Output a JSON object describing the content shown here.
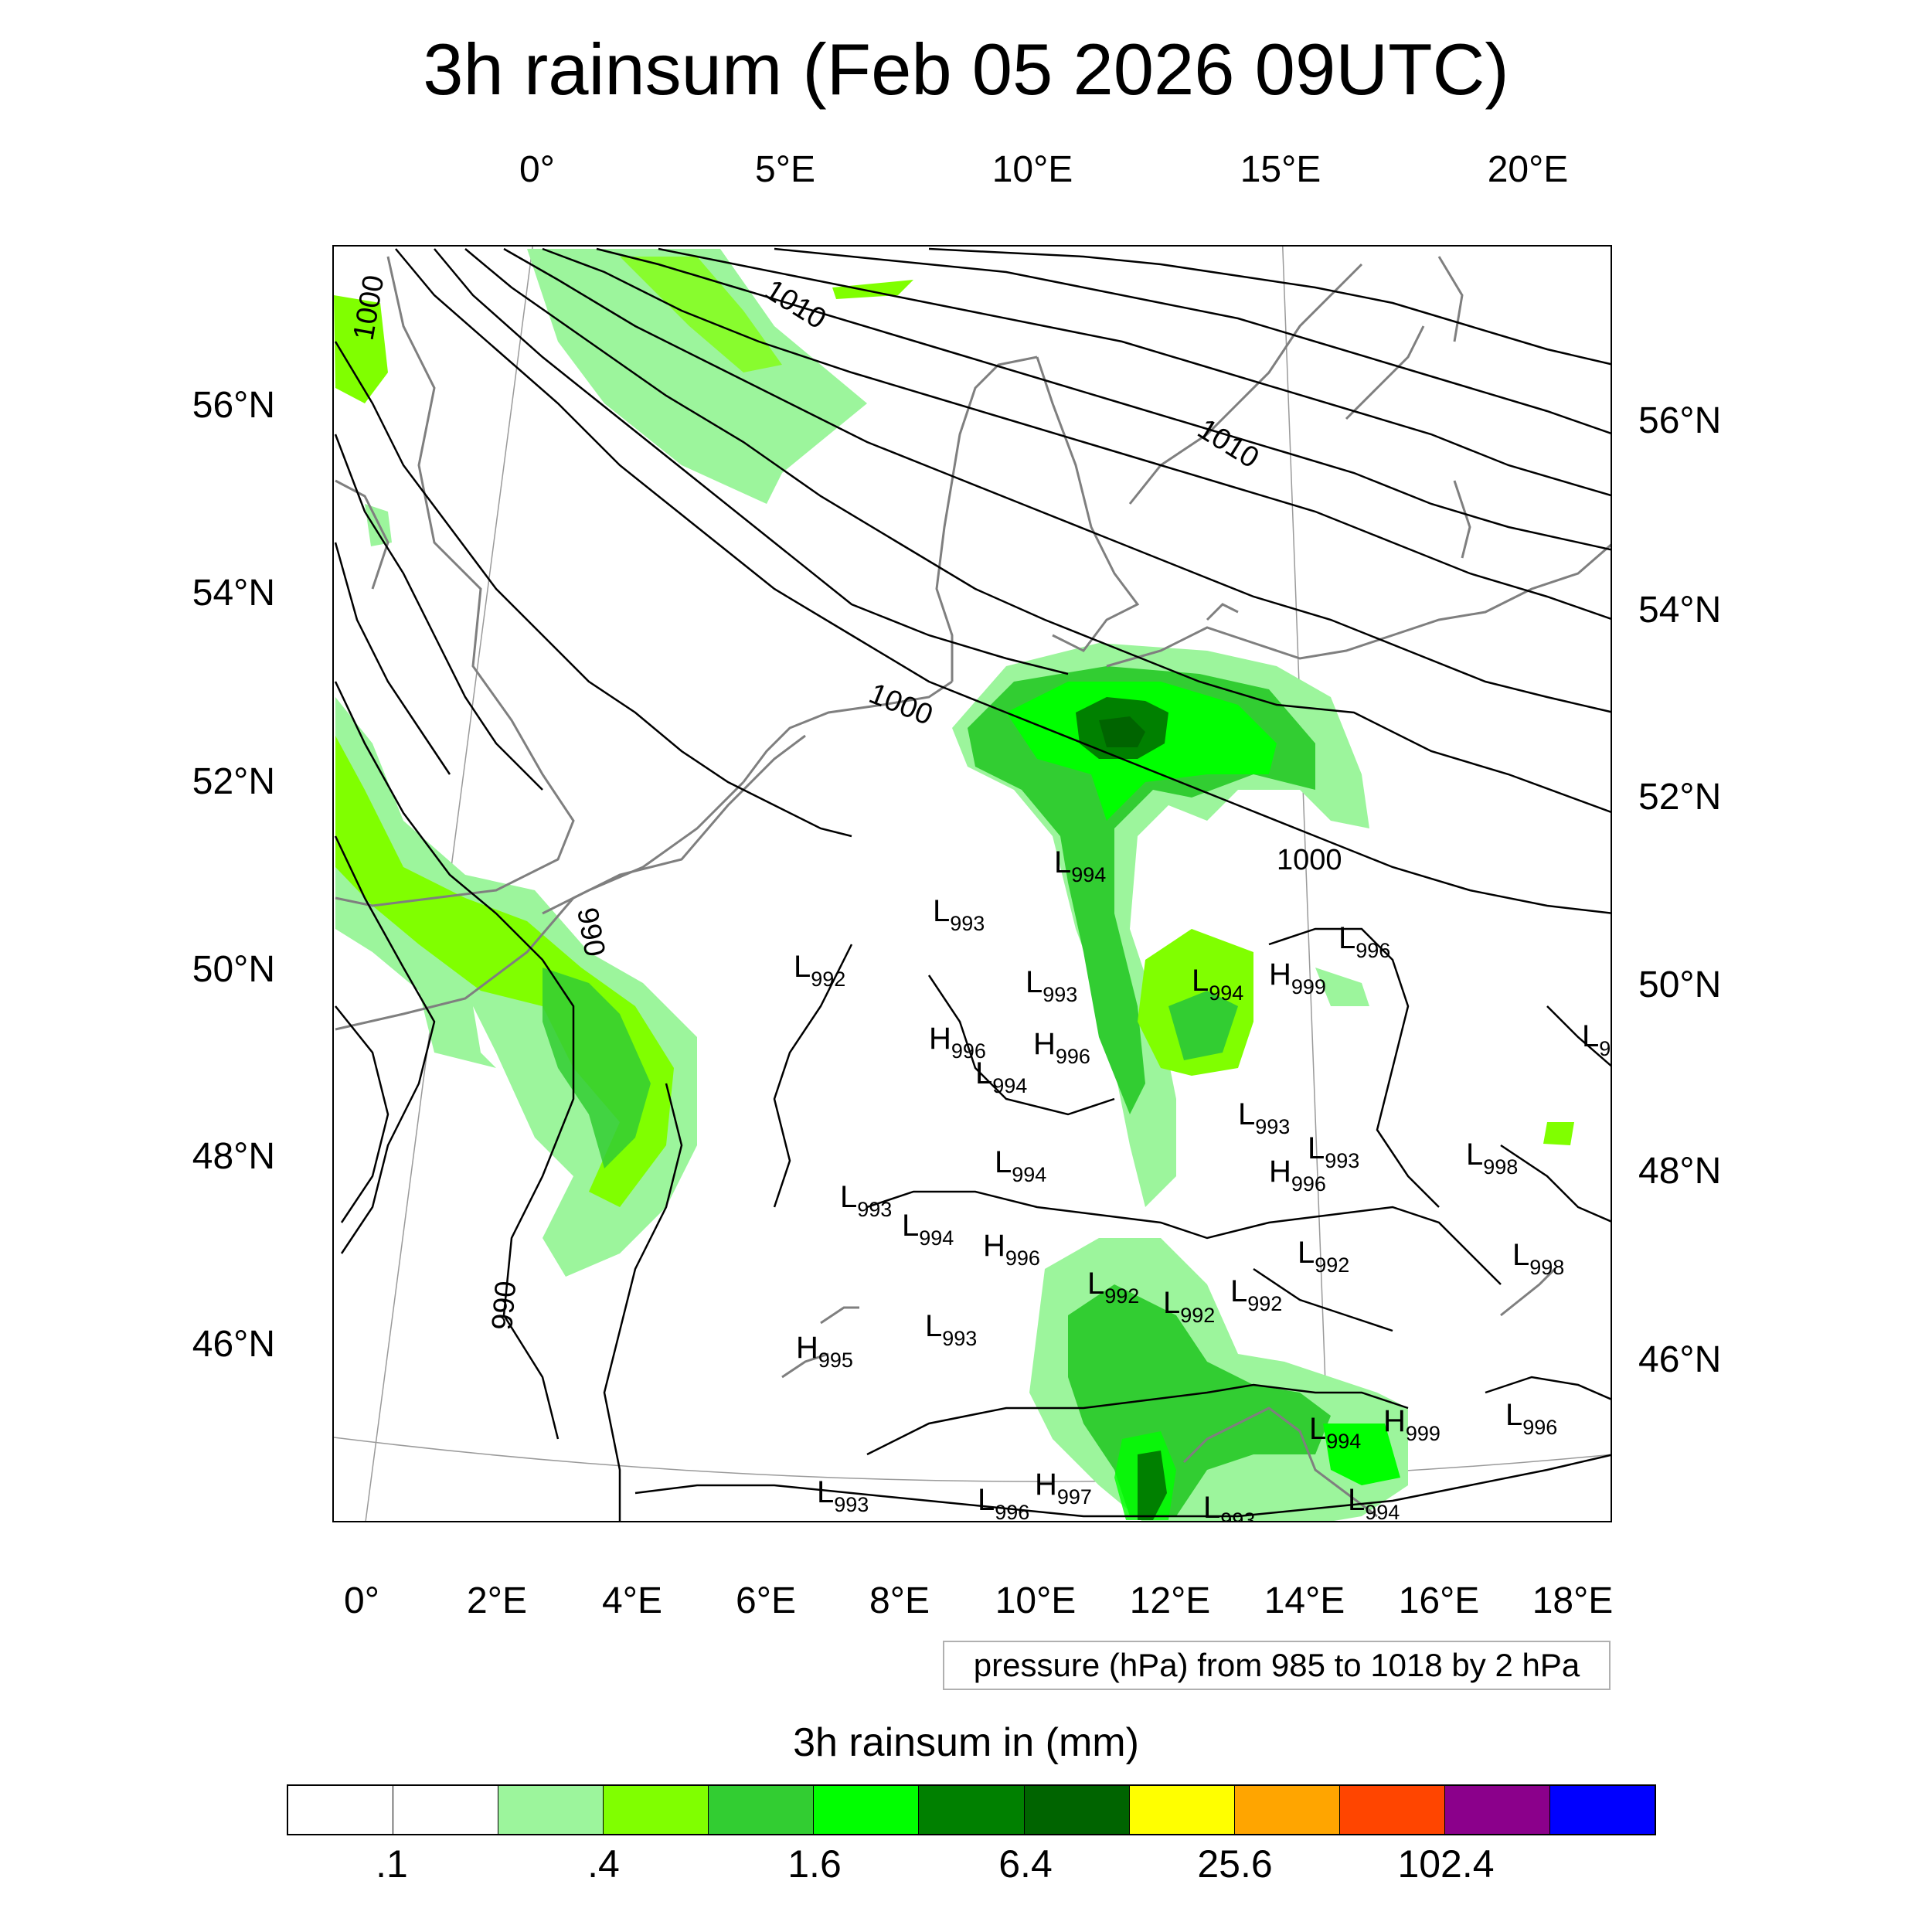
{
  "title": "3h rainsum (Feb 05 2026 09UTC)",
  "axes": {
    "top_lon": [
      "0°",
      "5°E",
      "10°E",
      "15°E",
      "20°E"
    ],
    "bottom_lon": [
      "0°",
      "2°E",
      "4°E",
      "6°E",
      "8°E",
      "10°E",
      "12°E",
      "14°E",
      "16°E",
      "18°E"
    ],
    "left_lat": [
      "56°N",
      "54°N",
      "52°N",
      "50°N",
      "48°N",
      "46°N"
    ],
    "right_lat": [
      "56°N",
      "54°N",
      "52°N",
      "50°N",
      "48°N",
      "46°N"
    ]
  },
  "info_box": "pressure (hPa) from 985 to 1018 by 2 hPa",
  "legend": {
    "title": "3h rainsum in (mm)",
    "colors": [
      "#ffffff",
      "#ffffff",
      "#9cf59c",
      "#80ff00",
      "#32cd32",
      "#00ff00",
      "#008000",
      "#006400",
      "#ffff00",
      "#ffa500",
      "#ff4500",
      "#8b008b",
      "#0000ff"
    ],
    "labels": [
      ".1",
      ".4",
      "1.6",
      "6.4",
      "25.6",
      "102.4"
    ]
  },
  "isobar_labels": [
    "1000",
    "1010",
    "1010",
    "1000",
    "1000",
    "990",
    "990"
  ],
  "pressure_centers": [
    {
      "t": "L",
      "v": "994"
    },
    {
      "t": "L",
      "v": "993"
    },
    {
      "t": "L",
      "v": "992"
    },
    {
      "t": "L",
      "v": "993"
    },
    {
      "t": "L",
      "v": "994"
    },
    {
      "t": "H",
      "v": "999"
    },
    {
      "t": "L",
      "v": "996"
    },
    {
      "t": "H",
      "v": "996"
    },
    {
      "t": "H",
      "v": "996"
    },
    {
      "t": "L",
      "v": "994"
    },
    {
      "t": "L",
      "v": "993"
    },
    {
      "t": "L",
      "v": "993"
    },
    {
      "t": "H",
      "v": "996"
    },
    {
      "t": "L",
      "v": "998"
    },
    {
      "t": "L",
      "v": "994"
    },
    {
      "t": "L",
      "v": "993"
    },
    {
      "t": "L",
      "v": "994"
    },
    {
      "t": "H",
      "v": "996"
    },
    {
      "t": "L",
      "v": "992"
    },
    {
      "t": "L",
      "v": "992"
    },
    {
      "t": "L",
      "v": "992"
    },
    {
      "t": "L",
      "v": "992"
    },
    {
      "t": "L",
      "v": "998"
    },
    {
      "t": "L",
      "v": "993"
    },
    {
      "t": "H",
      "v": "995"
    },
    {
      "t": "L",
      "v": "994"
    },
    {
      "t": "H",
      "v": "999"
    },
    {
      "t": "L",
      "v": "996"
    },
    {
      "t": "L",
      "v": "993"
    },
    {
      "t": "L",
      "v": "996"
    },
    {
      "t": "H",
      "v": "997"
    },
    {
      "t": "L",
      "v": "993"
    },
    {
      "t": "L",
      "v": "994"
    },
    {
      "t": "L",
      "v": "9"
    }
  ]
}
